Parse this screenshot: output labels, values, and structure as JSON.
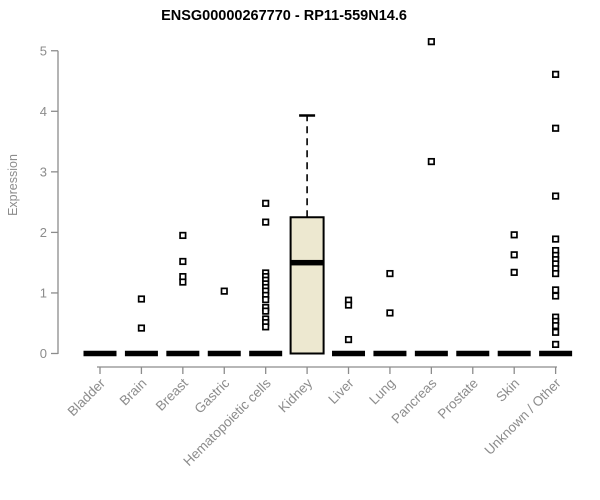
{
  "title": "ENSG00000267770 - RP11-559N14.6",
  "y_axis": {
    "label": "Expression"
  },
  "chart_data": {
    "type": "boxplot",
    "title": "ENSG00000267770 - RP11-559N14.6",
    "xlabel": "",
    "ylabel": "Expression",
    "ylim": [
      0,
      5
    ],
    "yticks": [
      0,
      1,
      2,
      3,
      4,
      5
    ],
    "grid": false,
    "legend": false,
    "colors": {
      "box_fill": "#EDE8D0",
      "box_stroke": "#000000",
      "median": "#000000",
      "whisker": "#000000",
      "outlier_fill": "#FFFFFF",
      "outlier_stroke": "#000000",
      "axis": "#8C8C8C",
      "axis_text": "#8C8C8C",
      "title_text": "#000000",
      "background": "#FFFFFF"
    },
    "categories": [
      "Bladder",
      "Brain",
      "Breast",
      "Gastric",
      "Hematopoietic cells",
      "Kidney",
      "Liver",
      "Lung",
      "Pancreas",
      "Prostate",
      "Skin",
      "Unknown / Other"
    ],
    "boxes": [
      {
        "category": "Bladder",
        "whisker_low": 0,
        "q1": 0,
        "median": 0,
        "q3": 0,
        "whisker_high": 0,
        "outliers": []
      },
      {
        "category": "Brain",
        "whisker_low": 0,
        "q1": 0,
        "median": 0,
        "q3": 0,
        "whisker_high": 0,
        "outliers": [
          0.9,
          0.42
        ]
      },
      {
        "category": "Breast",
        "whisker_low": 0,
        "q1": 0,
        "median": 0,
        "q3": 0,
        "whisker_high": 0,
        "outliers": [
          1.95,
          1.52,
          1.27,
          1.18
        ]
      },
      {
        "category": "Gastric",
        "whisker_low": 0,
        "q1": 0,
        "median": 0,
        "q3": 0,
        "whisker_high": 0,
        "outliers": [
          1.03
        ]
      },
      {
        "category": "Hematopoietic cells",
        "whisker_low": 0,
        "q1": 0,
        "median": 0,
        "q3": 0,
        "whisker_high": 0,
        "outliers": [
          2.48,
          2.17,
          1.33,
          1.27,
          1.21,
          1.15,
          1.09,
          1.03,
          0.96,
          0.89,
          0.76,
          0.7,
          0.57,
          0.51,
          0.44
        ]
      },
      {
        "category": "Kidney",
        "whisker_low": 0,
        "q1": 0,
        "median": 1.5,
        "q3": 2.25,
        "whisker_high": 3.93,
        "outliers": []
      },
      {
        "category": "Liver",
        "whisker_low": 0,
        "q1": 0,
        "median": 0,
        "q3": 0,
        "whisker_high": 0,
        "outliers": [
          0.88,
          0.8,
          0.23
        ]
      },
      {
        "category": "Lung",
        "whisker_low": 0,
        "q1": 0,
        "median": 0,
        "q3": 0,
        "whisker_high": 0,
        "outliers": [
          1.32,
          0.67
        ]
      },
      {
        "category": "Pancreas",
        "whisker_low": 0,
        "q1": 0,
        "median": 0,
        "q3": 0,
        "whisker_high": 0,
        "outliers": [
          5.15,
          3.17
        ]
      },
      {
        "category": "Prostate",
        "whisker_low": 0,
        "q1": 0,
        "median": 0,
        "q3": 0,
        "whisker_high": 0,
        "outliers": []
      },
      {
        "category": "Skin",
        "whisker_low": 0,
        "q1": 0,
        "median": 0,
        "q3": 0,
        "whisker_high": 0,
        "outliers": [
          1.96,
          1.63,
          1.34
        ]
      },
      {
        "category": "Unknown / Other",
        "whisker_low": 0,
        "q1": 0,
        "median": 0,
        "q3": 0,
        "whisker_high": 0,
        "outliers": [
          4.61,
          3.72,
          2.6,
          1.89,
          1.7,
          1.62,
          1.55,
          1.48,
          1.4,
          1.32,
          1.05,
          0.95,
          0.6,
          0.53,
          0.46,
          0.35,
          0.15
        ]
      }
    ]
  }
}
